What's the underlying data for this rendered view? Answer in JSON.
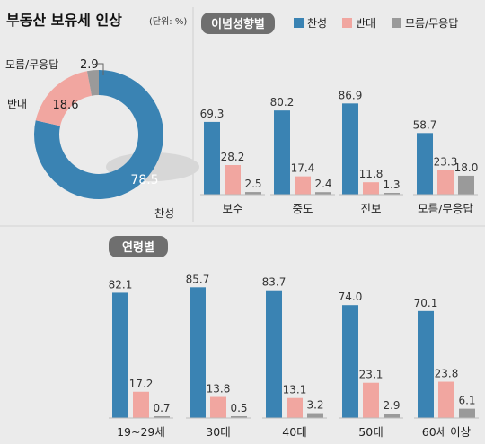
{
  "title": "부동산 보유세 인상",
  "unit": "(단위: %)",
  "colors": {
    "favor": "#3a83b3",
    "oppose": "#f1a6a0",
    "dunno": "#9a9a9a",
    "bar_label": "#333333",
    "badge": "#6f6f6f",
    "bg": "#ebebeb"
  },
  "legend": [
    "찬성",
    "반대",
    "모름/무응답"
  ],
  "chart_data": [
    {
      "type": "pie",
      "title": "부동산 보유세 인상",
      "categories": [
        "찬성",
        "반대",
        "모름/무응답"
      ],
      "values": [
        78.5,
        18.6,
        2.9
      ],
      "value_labels": [
        "78.5",
        "18.6",
        "2.9"
      ],
      "donut": true
    },
    {
      "type": "bar",
      "title": "이념성향별",
      "categories": [
        "보수",
        "중도",
        "진보",
        "모름/무응답"
      ],
      "series": [
        {
          "name": "찬성",
          "values": [
            69.3,
            80.2,
            86.9,
            58.7
          ],
          "labels": [
            "69.3",
            "80.2",
            "86.9",
            "58.7"
          ]
        },
        {
          "name": "반대",
          "values": [
            28.2,
            17.4,
            11.8,
            23.3
          ],
          "labels": [
            "28.2",
            "17.4",
            "11.8",
            "23.3"
          ]
        },
        {
          "name": "모름/무응답",
          "values": [
            2.5,
            2.4,
            1.3,
            18.0
          ],
          "labels": [
            "2.5",
            "2.4",
            "1.3",
            "18.0"
          ]
        }
      ]
    },
    {
      "type": "bar",
      "title": "연령별",
      "categories": [
        "19~29세",
        "30대",
        "40대",
        "50대",
        "60세 이상"
      ],
      "series": [
        {
          "name": "찬성",
          "values": [
            82.1,
            85.7,
            83.7,
            74.0,
            70.1
          ],
          "labels": [
            "82.1",
            "85.7",
            "83.7",
            "74.0",
            "70.1"
          ]
        },
        {
          "name": "반대",
          "values": [
            17.2,
            13.8,
            13.1,
            23.1,
            23.8
          ],
          "labels": [
            "17.2",
            "13.8",
            "13.1",
            "23.1",
            "23.8"
          ]
        },
        {
          "name": "모름/무응답",
          "values": [
            0.7,
            0.5,
            3.2,
            2.9,
            6.1
          ],
          "labels": [
            "0.7",
            "0.5",
            "3.2",
            "2.9",
            "6.1"
          ]
        }
      ]
    }
  ]
}
